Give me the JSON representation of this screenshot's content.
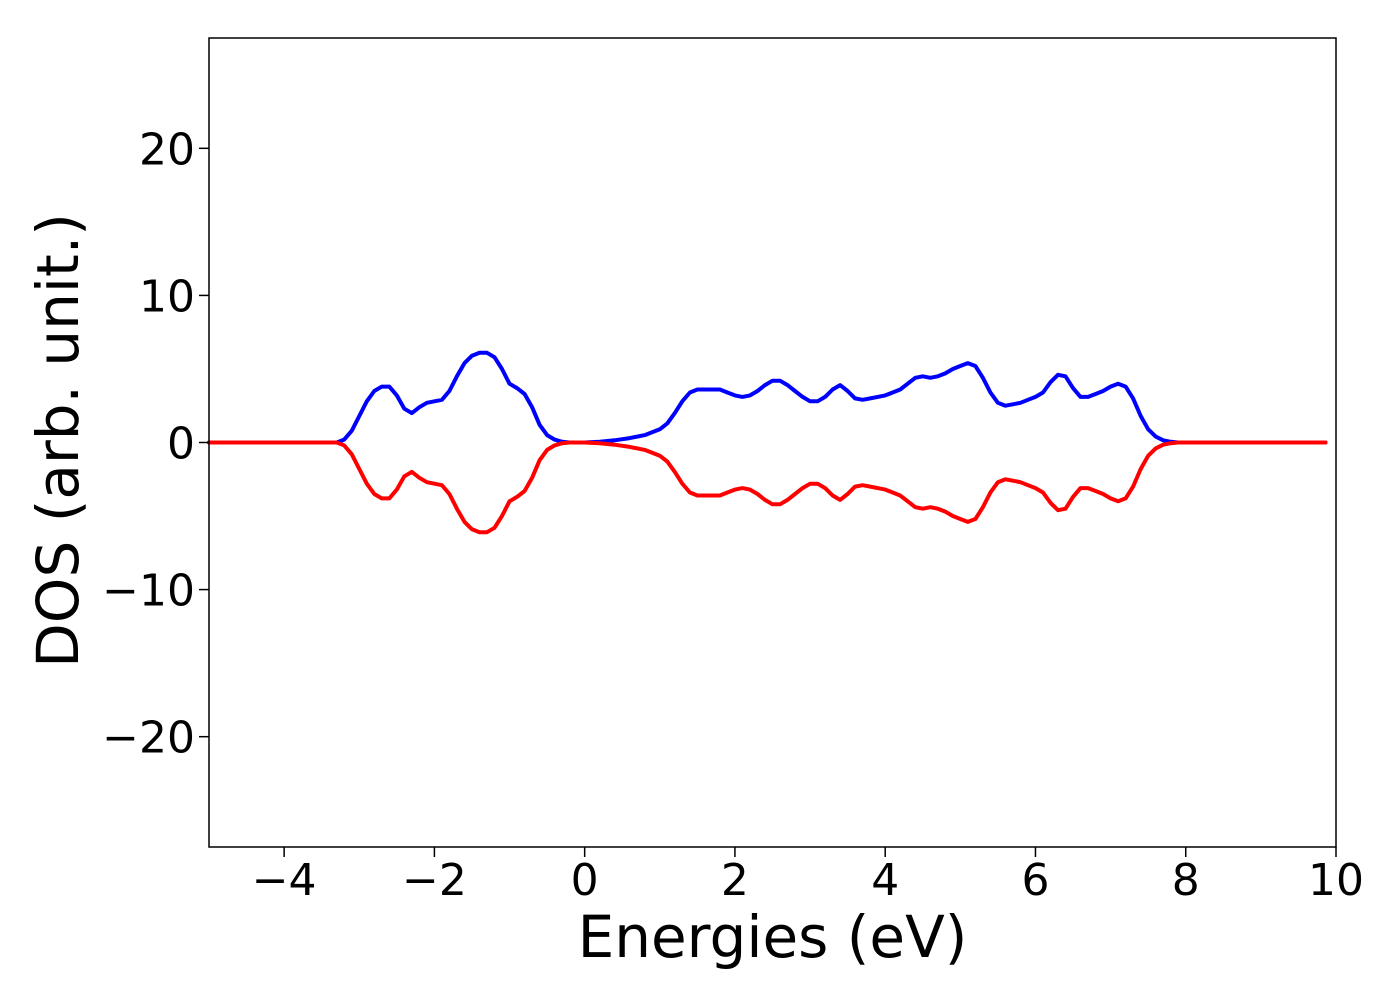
{
  "chart_data": {
    "type": "line",
    "title": "",
    "xlabel": "Energies (eV)",
    "ylabel": "DOS (arb. unit.)",
    "xlim": [
      -5,
      10
    ],
    "ylim": [
      -27.5,
      27.5
    ],
    "xticks": [
      -4,
      -2,
      0,
      2,
      4,
      6,
      8,
      10
    ],
    "xtick_labels": [
      "−4",
      "−2",
      "0",
      "2",
      "4",
      "6",
      "8",
      "10"
    ],
    "yticks": [
      -20,
      -10,
      0,
      10,
      20
    ],
    "ytick_labels": [
      "−20",
      "−10",
      "0",
      "10",
      "20"
    ],
    "grid": false,
    "legend": "none",
    "series": [
      {
        "color": "#0000ff",
        "x": [
          -5.0,
          -3.3,
          -3.2,
          -3.1,
          -3.0,
          -2.9,
          -2.8,
          -2.7,
          -2.6,
          -2.5,
          -2.4,
          -2.3,
          -2.2,
          -2.1,
          -2.0,
          -1.9,
          -1.8,
          -1.7,
          -1.6,
          -1.5,
          -1.4,
          -1.3,
          -1.2,
          -1.1,
          -1.0,
          -0.9,
          -0.8,
          -0.7,
          -0.6,
          -0.5,
          -0.4,
          -0.3,
          -0.2,
          0.0,
          0.2,
          0.4,
          0.6,
          0.8,
          1.0,
          1.1,
          1.2,
          1.3,
          1.4,
          1.5,
          1.6,
          1.7,
          1.8,
          1.9,
          2.0,
          2.1,
          2.2,
          2.3,
          2.4,
          2.5,
          2.6,
          2.7,
          2.8,
          2.9,
          3.0,
          3.1,
          3.2,
          3.3,
          3.4,
          3.5,
          3.6,
          3.7,
          3.8,
          3.9,
          4.0,
          4.1,
          4.2,
          4.3,
          4.4,
          4.5,
          4.6,
          4.7,
          4.8,
          4.9,
          5.0,
          5.1,
          5.2,
          5.3,
          5.4,
          5.5,
          5.6,
          5.7,
          5.8,
          5.9,
          6.0,
          6.1,
          6.2,
          6.3,
          6.4,
          6.5,
          6.6,
          6.7,
          6.8,
          6.9,
          7.0,
          7.1,
          7.2,
          7.3,
          7.4,
          7.5,
          7.6,
          7.7,
          7.8,
          7.9,
          8.0,
          9.0,
          9.86
        ],
        "y": [
          0,
          0,
          0.2,
          0.8,
          1.8,
          2.8,
          3.5,
          3.8,
          3.8,
          3.2,
          2.3,
          2.0,
          2.4,
          2.7,
          2.8,
          2.9,
          3.5,
          4.5,
          5.4,
          5.9,
          6.1,
          6.1,
          5.8,
          5.0,
          4.0,
          3.7,
          3.3,
          2.4,
          1.2,
          0.5,
          0.2,
          0.05,
          0.0,
          0.0,
          0.05,
          0.15,
          0.3,
          0.5,
          0.9,
          1.3,
          2.0,
          2.8,
          3.4,
          3.6,
          3.6,
          3.6,
          3.6,
          3.4,
          3.2,
          3.1,
          3.2,
          3.5,
          3.9,
          4.2,
          4.2,
          3.9,
          3.5,
          3.1,
          2.8,
          2.8,
          3.1,
          3.6,
          3.9,
          3.5,
          3.0,
          2.9,
          3.0,
          3.1,
          3.2,
          3.4,
          3.6,
          4.0,
          4.4,
          4.5,
          4.4,
          4.5,
          4.7,
          5.0,
          5.2,
          5.4,
          5.2,
          4.4,
          3.4,
          2.7,
          2.5,
          2.6,
          2.7,
          2.9,
          3.1,
          3.4,
          4.1,
          4.6,
          4.5,
          3.7,
          3.1,
          3.1,
          3.3,
          3.5,
          3.8,
          4.0,
          3.8,
          3.0,
          1.8,
          0.9,
          0.4,
          0.15,
          0.05,
          0.0,
          0.0,
          0.0,
          0.0
        ]
      },
      {
        "color": "#ff0000",
        "x": [
          -5.0,
          -3.3,
          -3.2,
          -3.1,
          -3.0,
          -2.9,
          -2.8,
          -2.7,
          -2.6,
          -2.5,
          -2.4,
          -2.3,
          -2.2,
          -2.1,
          -2.0,
          -1.9,
          -1.8,
          -1.7,
          -1.6,
          -1.5,
          -1.4,
          -1.3,
          -1.2,
          -1.1,
          -1.0,
          -0.9,
          -0.8,
          -0.7,
          -0.6,
          -0.5,
          -0.4,
          -0.3,
          -0.2,
          0.0,
          0.2,
          0.4,
          0.6,
          0.8,
          1.0,
          1.1,
          1.2,
          1.3,
          1.4,
          1.5,
          1.6,
          1.7,
          1.8,
          1.9,
          2.0,
          2.1,
          2.2,
          2.3,
          2.4,
          2.5,
          2.6,
          2.7,
          2.8,
          2.9,
          3.0,
          3.1,
          3.2,
          3.3,
          3.4,
          3.5,
          3.6,
          3.7,
          3.8,
          3.9,
          4.0,
          4.1,
          4.2,
          4.3,
          4.4,
          4.5,
          4.6,
          4.7,
          4.8,
          4.9,
          5.0,
          5.1,
          5.2,
          5.3,
          5.4,
          5.5,
          5.6,
          5.7,
          5.8,
          5.9,
          6.0,
          6.1,
          6.2,
          6.3,
          6.4,
          6.5,
          6.6,
          6.7,
          6.8,
          6.9,
          7.0,
          7.1,
          7.2,
          7.3,
          7.4,
          7.5,
          7.6,
          7.7,
          7.8,
          7.9,
          8.0,
          9.0,
          9.86
        ],
        "y": [
          0,
          0,
          -0.2,
          -0.8,
          -1.8,
          -2.8,
          -3.5,
          -3.8,
          -3.8,
          -3.2,
          -2.3,
          -2.0,
          -2.4,
          -2.7,
          -2.8,
          -2.9,
          -3.5,
          -4.5,
          -5.4,
          -5.9,
          -6.1,
          -6.1,
          -5.8,
          -5.0,
          -4.0,
          -3.7,
          -3.3,
          -2.4,
          -1.2,
          -0.5,
          -0.2,
          -0.05,
          0.0,
          0.0,
          -0.05,
          -0.15,
          -0.3,
          -0.5,
          -0.9,
          -1.3,
          -2.0,
          -2.8,
          -3.4,
          -3.6,
          -3.6,
          -3.6,
          -3.6,
          -3.4,
          -3.2,
          -3.1,
          -3.2,
          -3.5,
          -3.9,
          -4.2,
          -4.2,
          -3.9,
          -3.5,
          -3.1,
          -2.8,
          -2.8,
          -3.1,
          -3.6,
          -3.9,
          -3.5,
          -3.0,
          -2.9,
          -3.0,
          -3.1,
          -3.2,
          -3.4,
          -3.6,
          -4.0,
          -4.4,
          -4.5,
          -4.4,
          -4.5,
          -4.7,
          -5.0,
          -5.2,
          -5.4,
          -5.2,
          -4.4,
          -3.4,
          -2.7,
          -2.5,
          -2.6,
          -2.7,
          -2.9,
          -3.1,
          -3.4,
          -4.1,
          -4.6,
          -4.5,
          -3.7,
          -3.1,
          -3.1,
          -3.3,
          -3.5,
          -3.8,
          -4.0,
          -3.8,
          -3.0,
          -1.8,
          -0.9,
          -0.4,
          -0.15,
          -0.05,
          0.0,
          0.0,
          0.0,
          0.0
        ]
      }
    ]
  }
}
